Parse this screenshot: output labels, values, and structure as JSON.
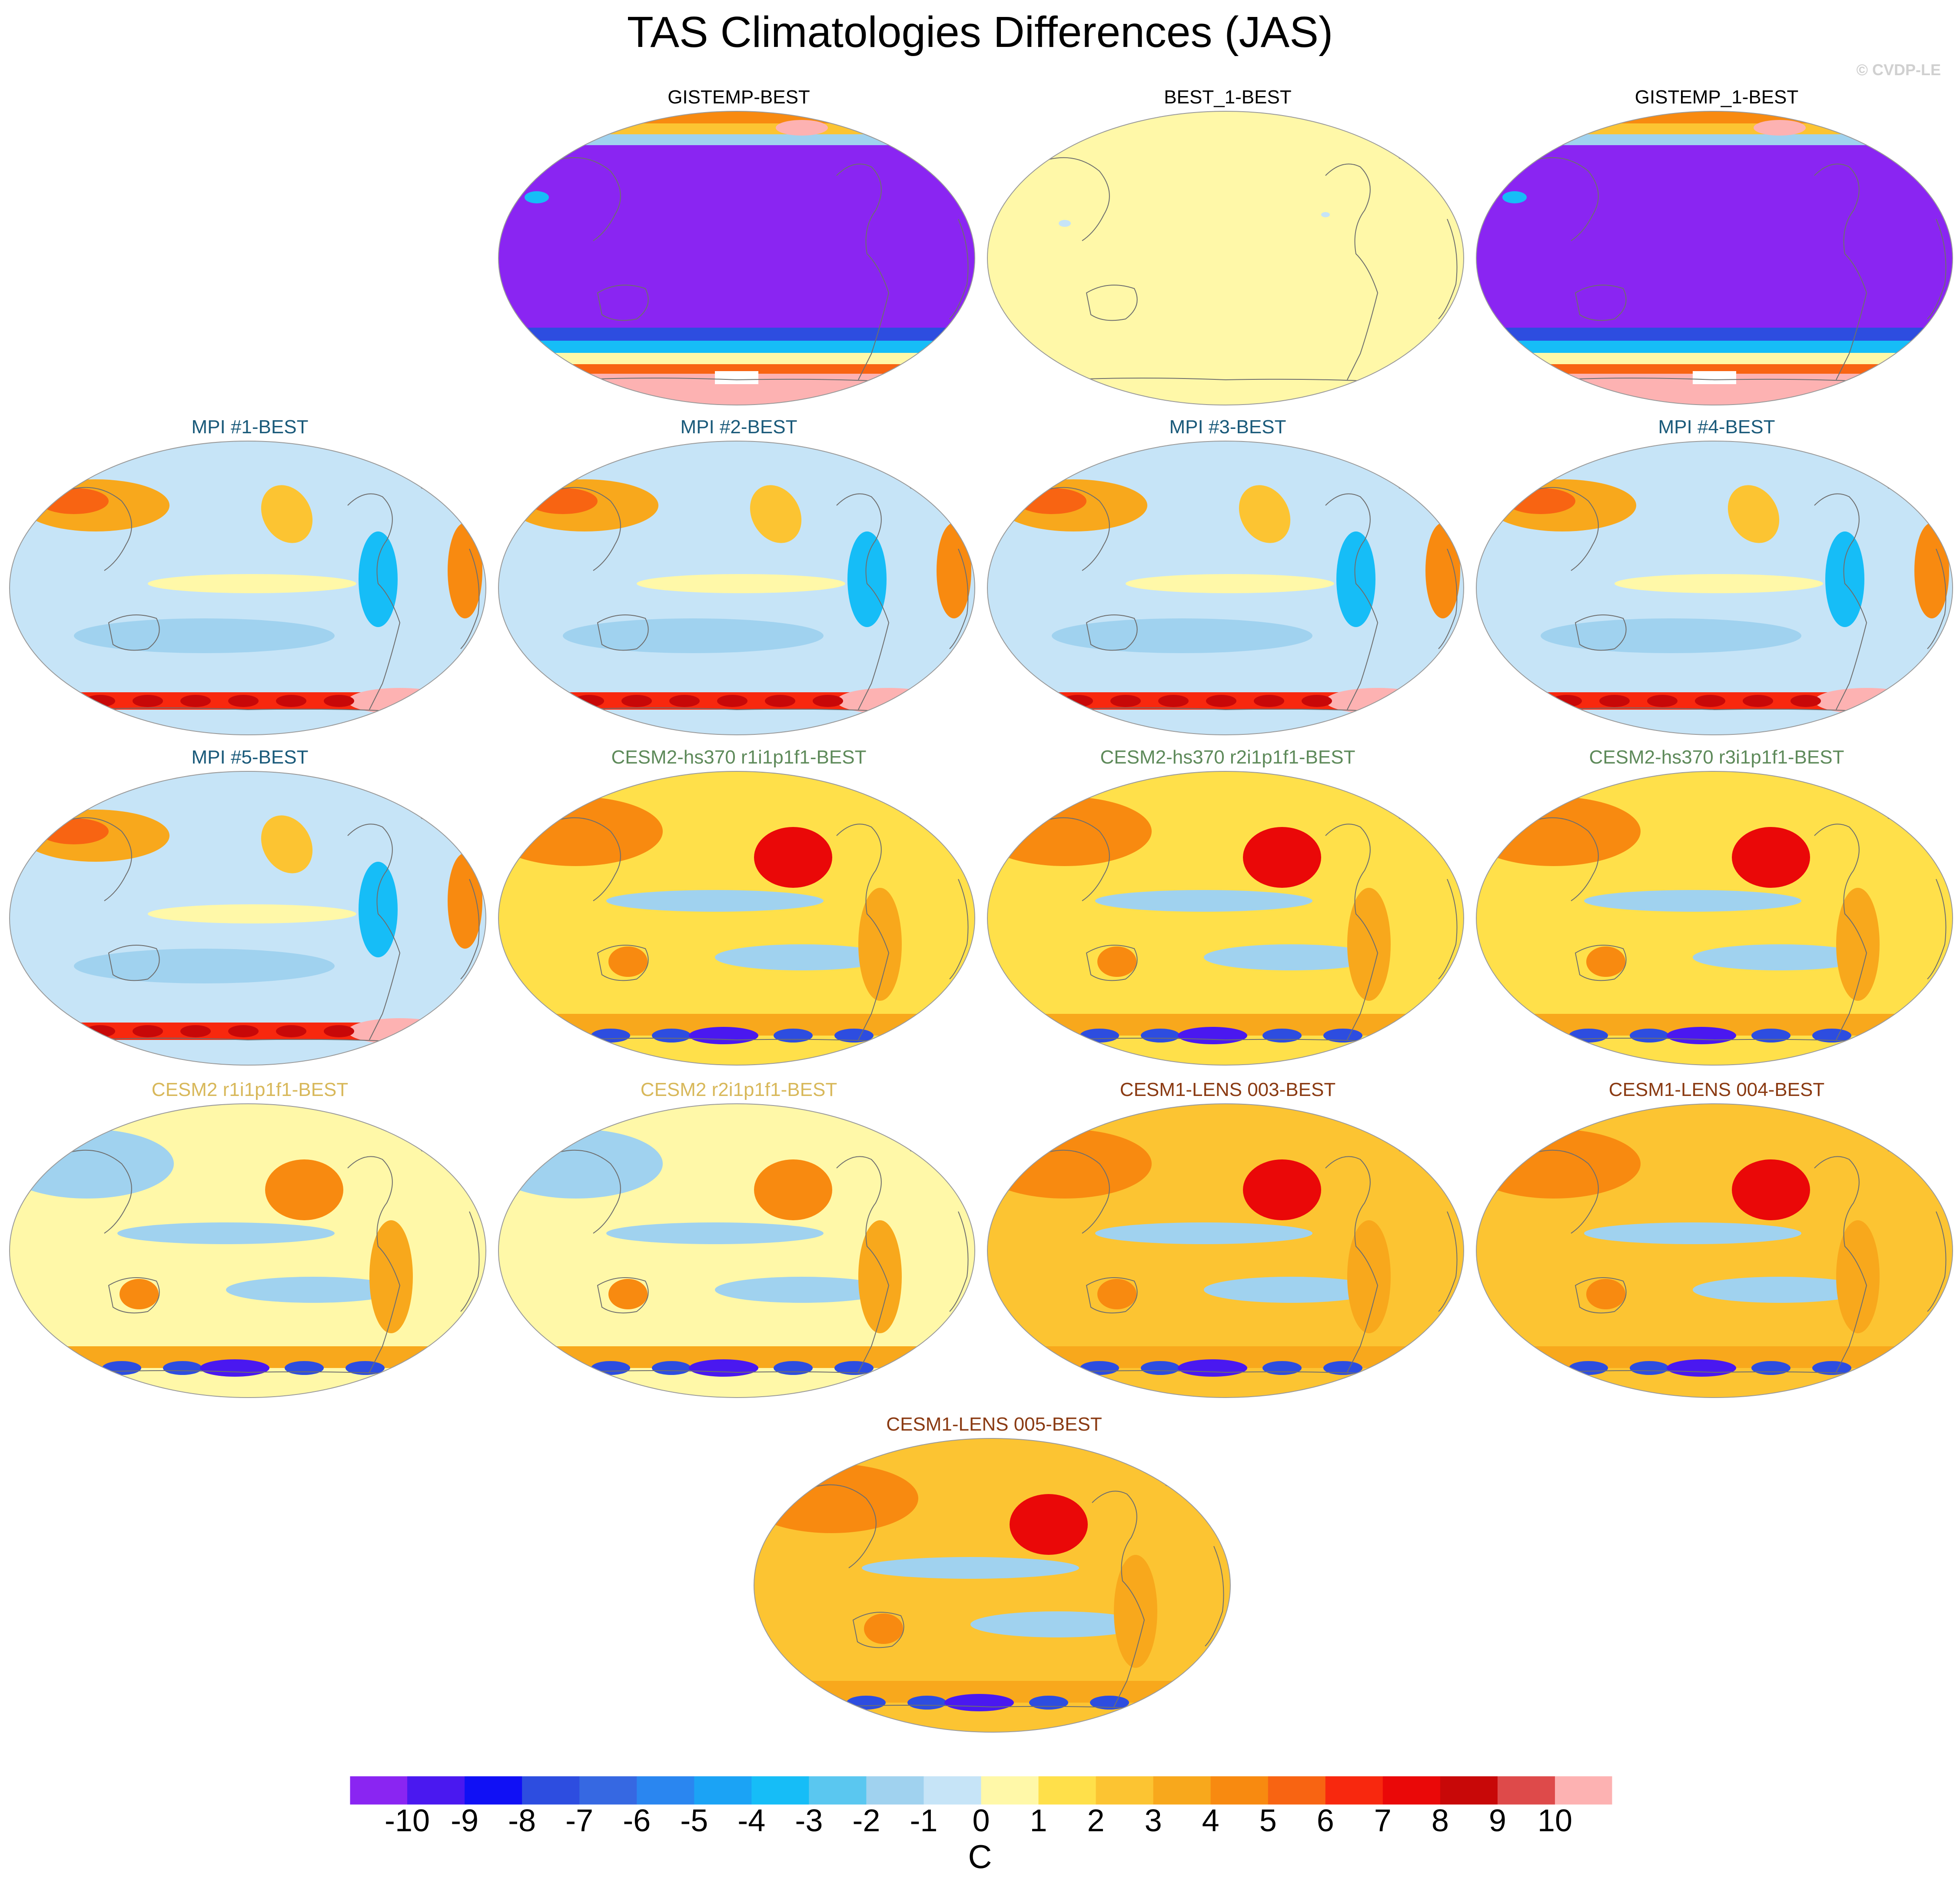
{
  "title": "TAS Climatologies Differences (JAS)",
  "watermark": "© CVDP-LE",
  "chart_data": {
    "type": "heatmap",
    "title": "TAS Climatologies Differences (JAS)",
    "projection": "Robinson (global, Pacific-centered)",
    "colorbar": {
      "units": "C",
      "ticks": [
        -10,
        -9,
        -8,
        -7,
        -6,
        -5,
        -4,
        -3,
        -2,
        -1,
        0,
        1,
        2,
        3,
        4,
        5,
        6,
        7,
        8,
        9,
        10
      ],
      "colors": [
        "#8a25f2",
        "#4a18f0",
        "#1010f5",
        "#2d4de0",
        "#3668e2",
        "#2a86f0",
        "#1ba3f5",
        "#16bdf7",
        "#5ac7f0",
        "#a0d2ef",
        "#c6e4f7",
        "#fff8a8",
        "#ffe04a",
        "#fcc432",
        "#f8a81c",
        "#f88a10",
        "#f86412",
        "#f8280e",
        "#ea0808",
        "#c80808",
        "#de4a4a",
        "#fdb2b2"
      ]
    },
    "panels": [
      {
        "label": "GISTEMP-BEST",
        "title_color": "#000000",
        "pattern": "cold_poles",
        "mean_level": "< -10"
      },
      {
        "label": "BEST_1-BEST",
        "title_color": "#000000",
        "pattern": "near_zero",
        "mean_level": "0 to 1"
      },
      {
        "label": "GISTEMP_1-BEST",
        "title_color": "#000000",
        "pattern": "cold_poles",
        "mean_level": "< -10"
      },
      {
        "label": "MPI #1-BEST",
        "title_color": "#1a5a7a",
        "pattern": "cool_bias",
        "mean_level": "-1 to 0"
      },
      {
        "label": "MPI #2-BEST",
        "title_color": "#1a5a7a",
        "pattern": "cool_bias",
        "mean_level": "-1 to 0"
      },
      {
        "label": "MPI #3-BEST",
        "title_color": "#1a5a7a",
        "pattern": "cool_bias",
        "mean_level": "-1 to 0"
      },
      {
        "label": "MPI #4-BEST",
        "title_color": "#1a5a7a",
        "pattern": "cool_bias",
        "mean_level": "-1 to 0"
      },
      {
        "label": "MPI #5-BEST",
        "title_color": "#1a5a7a",
        "pattern": "cool_bias",
        "mean_level": "-1 to 0"
      },
      {
        "label": "CESM2-hs370 r1i1p1f1-BEST",
        "title_color": "#5e8a5a",
        "pattern": "warm_bias",
        "mean_level": "1 to 2"
      },
      {
        "label": "CESM2-hs370 r2i1p1f1-BEST",
        "title_color": "#5e8a5a",
        "pattern": "warm_bias",
        "mean_level": "1 to 2"
      },
      {
        "label": "CESM2-hs370 r3i1p1f1-BEST",
        "title_color": "#5e8a5a",
        "pattern": "warm_bias",
        "mean_level": "1 to 2"
      },
      {
        "label": "CESM2 r1i1p1f1-BEST",
        "title_color": "#d8b85a",
        "pattern": "mild_warm",
        "mean_level": "0 to 1"
      },
      {
        "label": "CESM2 r2i1p1f1-BEST",
        "title_color": "#d8b85a",
        "pattern": "mild_warm",
        "mean_level": "0 to 1"
      },
      {
        "label": "CESM1-LENS 003-BEST",
        "title_color": "#8a3a12",
        "pattern": "strong_warm",
        "mean_level": "2 to 3"
      },
      {
        "label": "CESM1-LENS 004-BEST",
        "title_color": "#8a3a12",
        "pattern": "strong_warm",
        "mean_level": "2 to 3"
      },
      {
        "label": "CESM1-LENS 005-BEST",
        "title_color": "#8a3a12",
        "pattern": "strong_warm",
        "mean_level": "2 to 3"
      }
    ]
  }
}
